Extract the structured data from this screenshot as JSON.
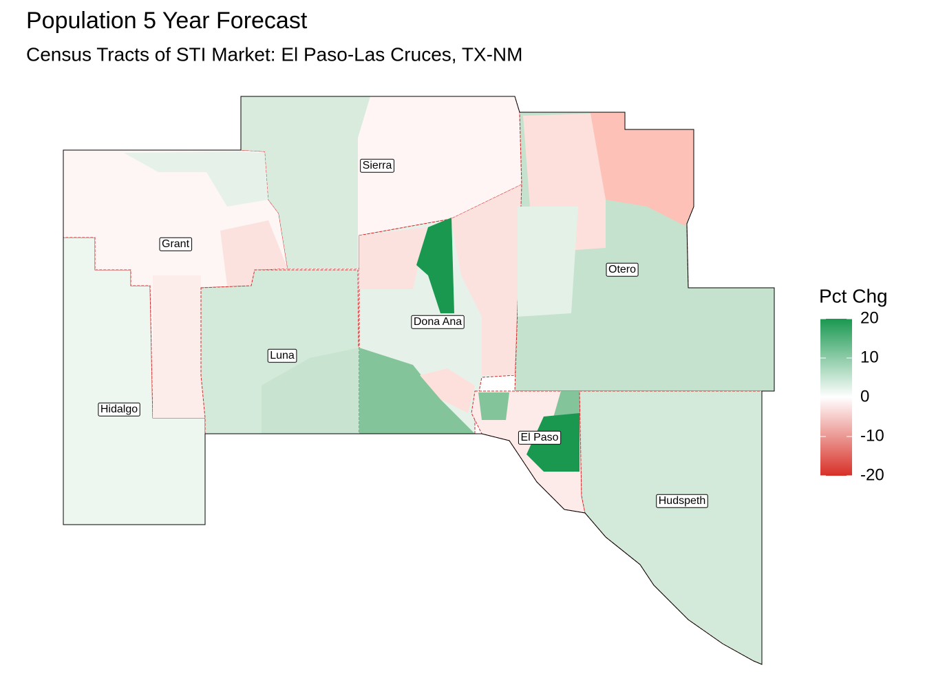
{
  "title": "Population 5 Year Forecast",
  "subtitle": "Census Tracts of STI Market: El Paso-Las Cruces, TX-NM",
  "counties": [
    "Sierra",
    "Grant",
    "Otero",
    "Dona Ana",
    "Luna",
    "Hidalgo",
    "El Paso",
    "Hudspeth"
  ],
  "legend": {
    "title": "Pct Chg",
    "limits": [
      -20,
      20
    ],
    "ticks": [
      20,
      10,
      0,
      -10,
      -20
    ],
    "colors": {
      "low": "#d73027",
      "mid": "#ffffff",
      "high": "#1a9850"
    }
  }
}
